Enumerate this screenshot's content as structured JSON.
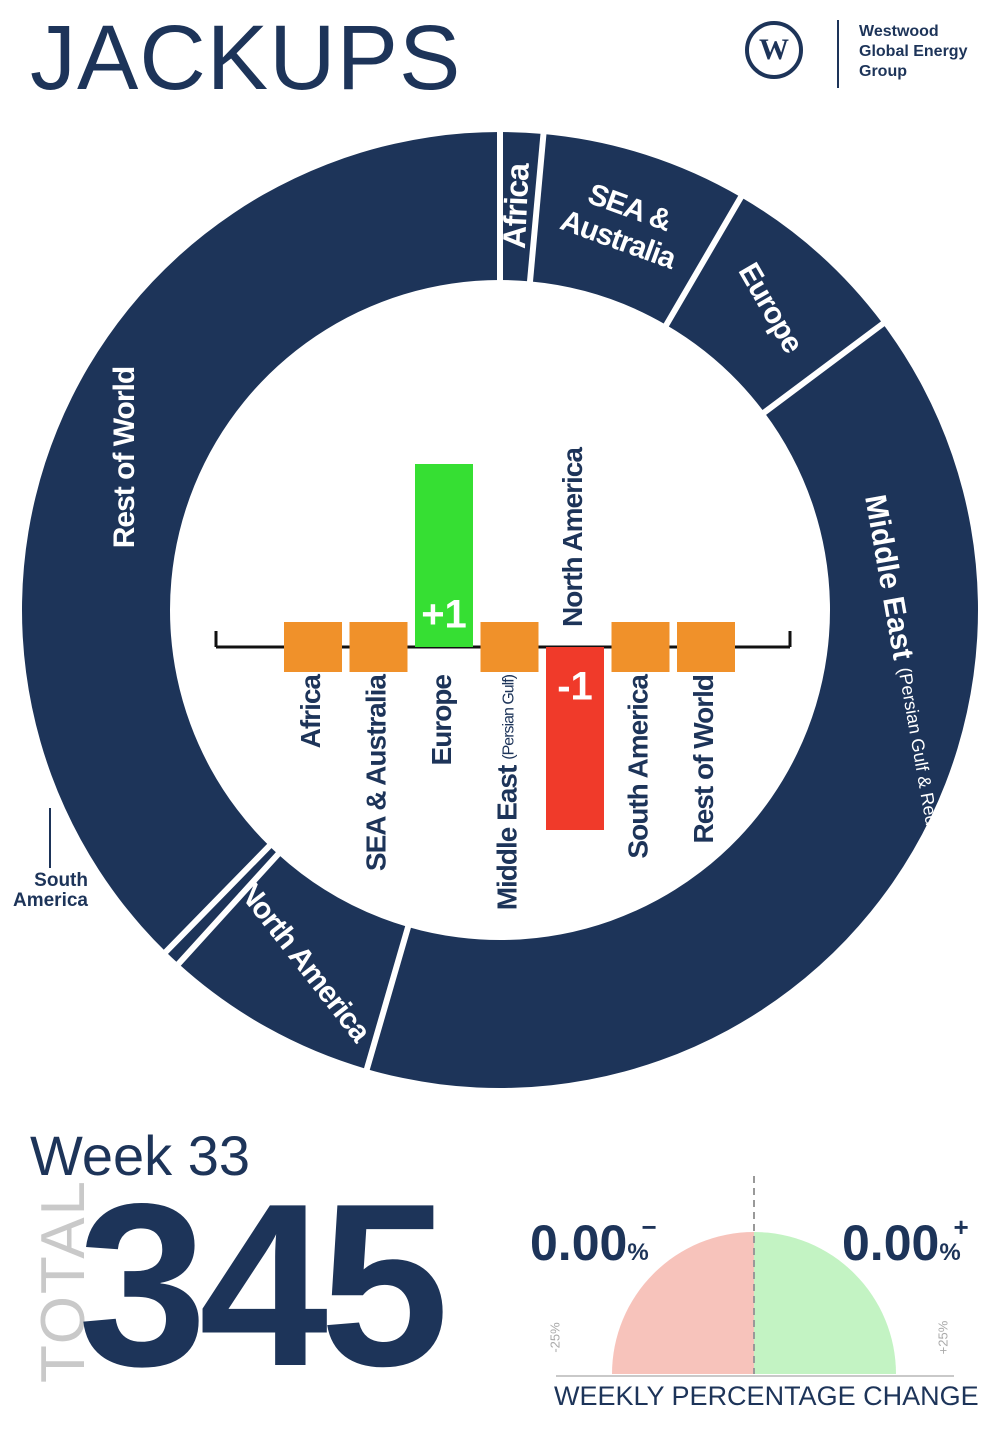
{
  "title": "JACKUPS",
  "logo": {
    "line1": "Westwood",
    "line2": "Global Energy",
    "line3": "Group",
    "mark": "W",
    "icon": "westwood-logo-icon"
  },
  "week_label": "Week 33",
  "total_label": "TOTAL",
  "total_value": "345",
  "change": {
    "negative_value": "0.00",
    "negative_sign": "−",
    "positive_value": "0.00",
    "positive_sign": "+",
    "percent_symbol": "%",
    "min_label": "-25%",
    "max_label": "+25%",
    "caption": "WEEKLY PERCENTAGE CHANGE",
    "negative_color": "#f7c3bb",
    "positive_color": "#c3f3c3"
  },
  "colors": {
    "navy": "#1d3459",
    "orange": "#f0912a",
    "green": "#36df33",
    "red": "#f03a2a"
  },
  "chart_data": [
    {
      "type": "pie",
      "variant": "donut",
      "slices": [
        {
          "label": "Africa",
          "value": 5
        },
        {
          "label": "SEA & Australia",
          "value": 24
        },
        {
          "label": "Europe",
          "value": 22
        },
        {
          "label": "Middle East",
          "sublabel": "(Persian Gulf & Red Sea)",
          "value": 137
        },
        {
          "label": "North America",
          "value": 25
        },
        {
          "label": "South America",
          "value": 2
        },
        {
          "label": "Rest of World",
          "value": 130
        }
      ]
    },
    {
      "type": "bar",
      "categories": [
        "Africa",
        "SEA & Australia",
        "Europe",
        "Middle East (Persian Gulf)",
        "North America",
        "South America",
        "Rest of World"
      ],
      "category_labels": [
        {
          "main": "Africa",
          "sub": ""
        },
        {
          "main": "SEA & Australia",
          "sub": ""
        },
        {
          "main": "Europe",
          "sub": ""
        },
        {
          "main": "Middle East",
          "sub": "(Persian Gulf)"
        },
        {
          "main": "North America",
          "sub": ""
        },
        {
          "main": "South America",
          "sub": ""
        },
        {
          "main": "Rest of World",
          "sub": ""
        }
      ],
      "values": [
        0,
        0,
        1,
        0,
        -1,
        0,
        0
      ],
      "value_labels": [
        "",
        "",
        "+1",
        "",
        "-1",
        "",
        ""
      ],
      "legend": "none"
    }
  ],
  "south_america_callout": [
    "South",
    "America"
  ]
}
